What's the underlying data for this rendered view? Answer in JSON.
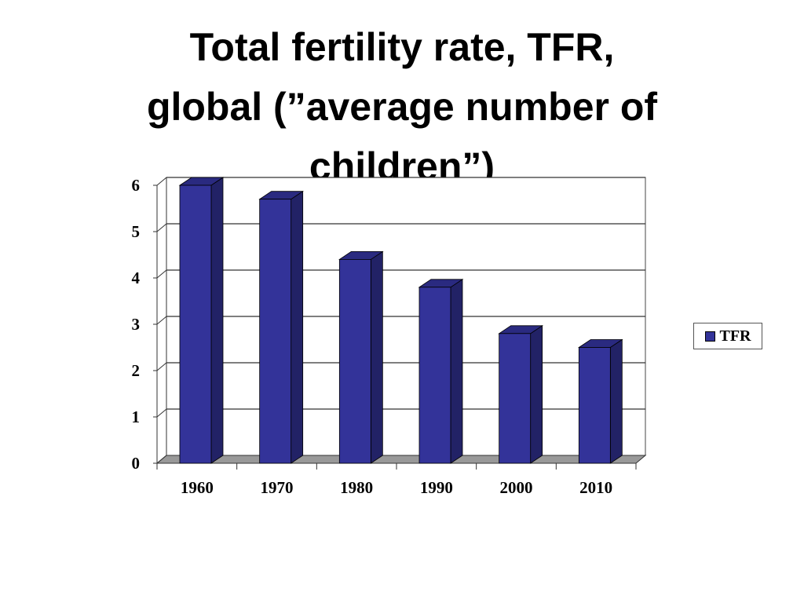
{
  "chart_data": {
    "type": "bar",
    "title_lines": [
      "Total fertility rate, TFR,",
      "global (”average number of",
      "children”)"
    ],
    "categories": [
      "1960",
      "1970",
      "1980",
      "1990",
      "2000",
      "2010"
    ],
    "series": [
      {
        "name": "TFR",
        "values": [
          6.0,
          5.7,
          4.4,
          3.8,
          2.8,
          2.5
        ],
        "color": "#333399"
      }
    ],
    "yticks": [
      "0",
      "1",
      "2",
      "3",
      "4",
      "5",
      "6"
    ],
    "ylim": [
      0,
      6
    ],
    "xlabel": "",
    "ylabel": "",
    "grid": true,
    "legend": "right",
    "style": "3d"
  }
}
